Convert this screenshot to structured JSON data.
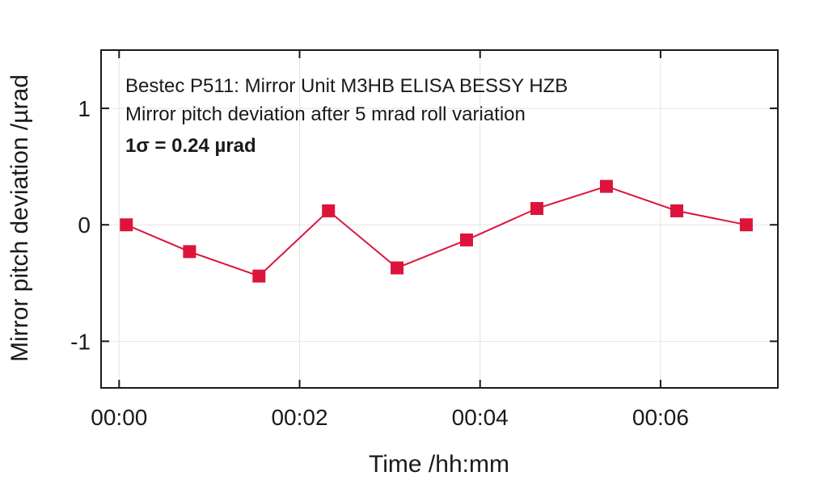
{
  "chart_data": {
    "type": "line",
    "annotations": [
      "Bestec P511: Mirror Unit M3HB ELISA BESSY HZB",
      "Mirror pitch deviation after 5 mrad roll variation",
      "1σ = 0.24 µrad"
    ],
    "xlabel": "Time /hh:mm",
    "ylabel": "Mirror pitch deviation /µrad",
    "x_unit": "minutes",
    "xlim": [
      -0.2,
      7.3
    ],
    "ylim": [
      -1.4,
      1.5
    ],
    "xticks": [
      {
        "value": 0,
        "label": "00:00"
      },
      {
        "value": 2,
        "label": "00:02"
      },
      {
        "value": 4,
        "label": "00:04"
      },
      {
        "value": 6,
        "label": "00:06"
      }
    ],
    "yticks": [
      {
        "value": 1,
        "label": "1"
      },
      {
        "value": 0,
        "label": "0"
      },
      {
        "value": -1,
        "label": "-1"
      }
    ],
    "grid": true,
    "series": [
      {
        "color": "#dc143c",
        "marker": "square",
        "x": [
          0.08,
          0.78,
          1.55,
          2.32,
          3.08,
          3.85,
          4.63,
          5.4,
          6.18,
          6.95
        ],
        "y": [
          0.0,
          -0.23,
          -0.44,
          0.12,
          -0.37,
          -0.13,
          0.14,
          0.33,
          0.12,
          0.0
        ]
      }
    ]
  }
}
